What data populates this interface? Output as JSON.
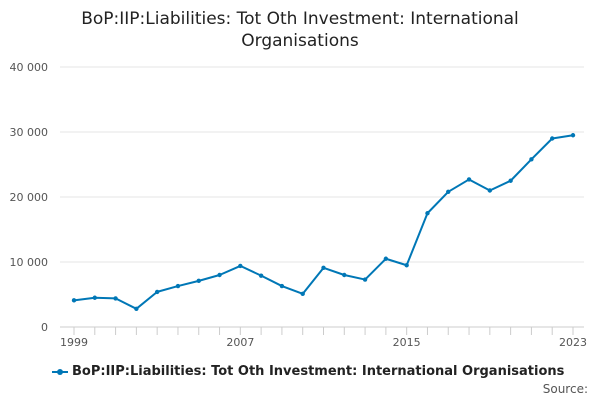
{
  "chart_data": {
    "type": "line",
    "title": "BoP:IIP:Liabilities: Tot Oth Investment: International Organisations",
    "xlabel": "",
    "ylabel": "",
    "x": [
      1999,
      2000,
      2001,
      2002,
      2003,
      2004,
      2005,
      2006,
      2007,
      2008,
      2009,
      2010,
      2011,
      2012,
      2013,
      2014,
      2015,
      2016,
      2017,
      2018,
      2019,
      2020,
      2021,
      2022,
      2023
    ],
    "series": [
      {
        "name": "BoP:IIP:Liabilities: Tot Oth Investment: International Organisations",
        "values": [
          4100,
          4500,
          4400,
          2800,
          5400,
          6300,
          7100,
          8000,
          9400,
          7900,
          6300,
          5100,
          9100,
          8000,
          7300,
          10500,
          9500,
          17500,
          20800,
          22700,
          21000,
          22500,
          25800,
          29000,
          29500
        ],
        "color": "#0077b6"
      }
    ],
    "xlim": [
      1999,
      2023
    ],
    "ylim": [
      0,
      40000
    ],
    "yticks": [
      0,
      10000,
      20000,
      30000,
      40000
    ],
    "ytick_labels": [
      "0",
      "10 000",
      "20 000",
      "30 000",
      "40 000"
    ],
    "xticks": [
      1999,
      2007,
      2015,
      2023
    ],
    "xtick_labels": [
      "1999",
      "2007",
      "2015",
      "2023"
    ],
    "grid": "horizontal",
    "legend_position": "bottom-left"
  },
  "footer": {
    "source_label": "Source:"
  }
}
